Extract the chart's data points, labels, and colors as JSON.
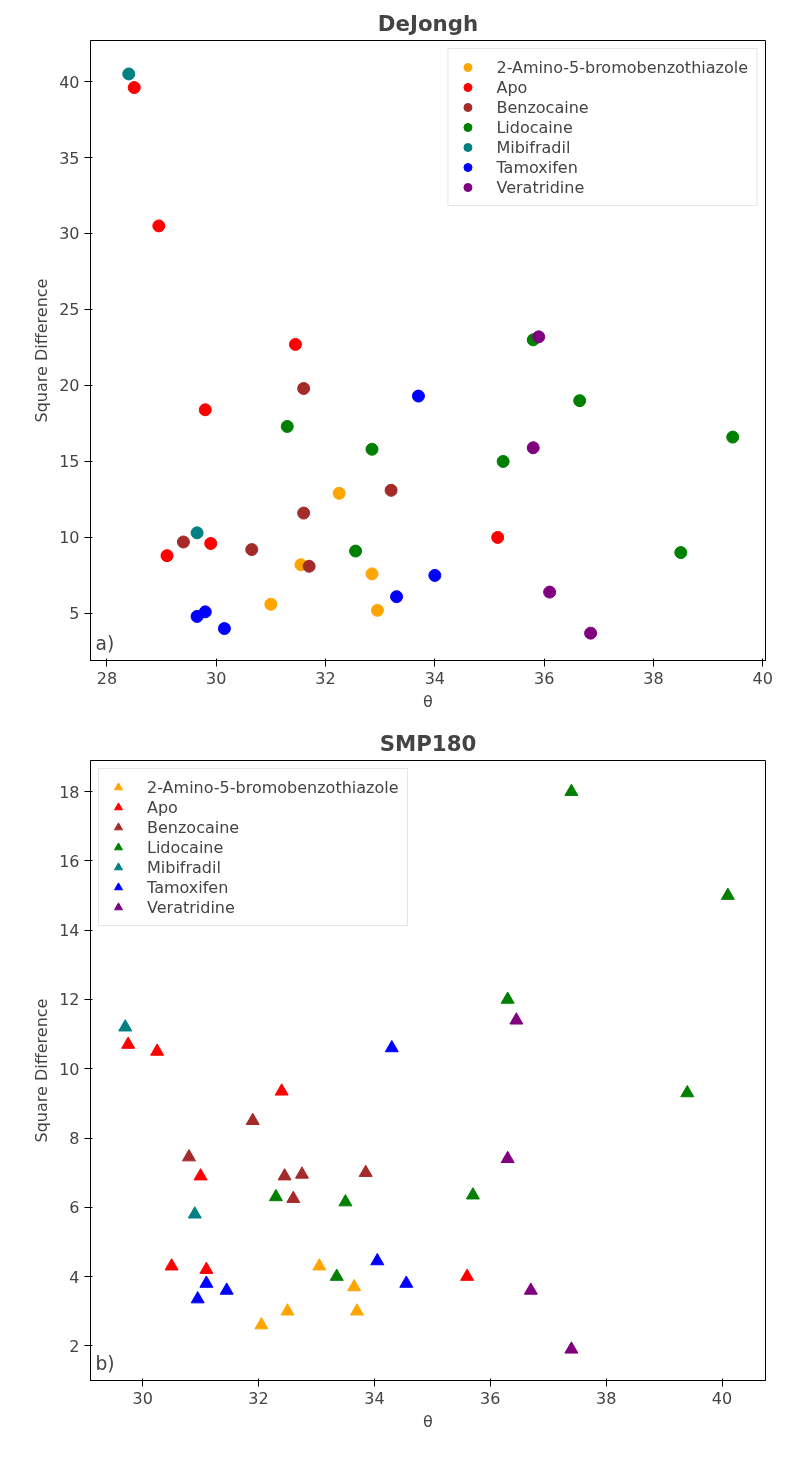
{
  "chart_data": [
    {
      "type": "scatter",
      "title": "DeJongh",
      "xlabel": "θ",
      "ylabel": "Square Difference",
      "annotations": [
        "a)"
      ],
      "marker": "circle",
      "legend": "top right",
      "grid": false,
      "xlim": [
        27.7,
        40.05
      ],
      "ylim": [
        1.9,
        42.7
      ],
      "xticks": [
        28,
        30,
        32,
        34,
        36,
        38,
        40
      ],
      "yticks": [
        5,
        10,
        15,
        20,
        25,
        30,
        35,
        40
      ],
      "series": [
        {
          "name": "2-Amino-5-bromobenzothiazole",
          "color": "#ffa500",
          "x": [
            31.0,
            31.55,
            32.25,
            32.85,
            32.95
          ],
          "values": [
            5.6,
            8.2,
            12.9,
            7.6,
            5.2
          ]
        },
        {
          "name": "Apo",
          "color": "#ff0000",
          "x": [
            28.5,
            28.95,
            29.1,
            29.8,
            29.9,
            31.45,
            35.15
          ],
          "values": [
            39.6,
            30.5,
            8.8,
            18.4,
            9.6,
            22.7,
            10.0
          ]
        },
        {
          "name": "Benzocaine",
          "color": "#a52a2a",
          "x": [
            29.4,
            30.65,
            31.6,
            31.6,
            31.7,
            33.2
          ],
          "values": [
            9.7,
            9.2,
            19.8,
            11.6,
            8.1,
            13.1
          ]
        },
        {
          "name": "Lidocaine",
          "color": "#008000",
          "x": [
            31.3,
            32.55,
            32.85,
            35.25,
            35.8,
            36.65,
            38.5,
            39.45
          ],
          "values": [
            17.3,
            9.1,
            15.8,
            15.0,
            23.0,
            19.0,
            9.0,
            16.6
          ]
        },
        {
          "name": "Mibifradil",
          "color": "#008080",
          "x": [
            28.4,
            29.65
          ],
          "values": [
            40.5,
            10.3
          ]
        },
        {
          "name": "Tamoxifen",
          "color": "#0000ff",
          "x": [
            29.65,
            29.8,
            30.15,
            33.3,
            33.7,
            34.0
          ],
          "values": [
            4.8,
            5.1,
            4.0,
            6.1,
            19.3,
            7.5
          ]
        },
        {
          "name": "Veratridine",
          "color": "#800080",
          "x": [
            35.8,
            35.9,
            36.1,
            36.85
          ],
          "values": [
            15.9,
            23.2,
            6.4,
            3.7
          ]
        }
      ]
    },
    {
      "type": "scatter",
      "title": "SMP180",
      "xlabel": "θ",
      "ylabel": "Square Difference",
      "annotations": [
        "b)"
      ],
      "marker": "triangle",
      "legend": "top left",
      "grid": false,
      "xlim": [
        29.1,
        40.75
      ],
      "ylim": [
        1.0,
        18.9
      ],
      "xticks": [
        30,
        32,
        34,
        36,
        38,
        40
      ],
      "yticks": [
        2,
        4,
        6,
        8,
        10,
        12,
        14,
        16,
        18
      ],
      "series": [
        {
          "name": "2-Amino-5-bromobenzothiazole",
          "color": "#ffa500",
          "x": [
            32.05,
            32.5,
            33.05,
            33.65,
            33.7
          ],
          "values": [
            2.6,
            3.0,
            4.3,
            3.7,
            3.0
          ]
        },
        {
          "name": "Apo",
          "color": "#ff0000",
          "x": [
            29.75,
            30.25,
            30.5,
            31.0,
            31.1,
            32.4,
            35.6
          ],
          "values": [
            10.7,
            10.5,
            4.3,
            6.9,
            4.2,
            9.35,
            4.0
          ]
        },
        {
          "name": "Benzocaine",
          "color": "#a52a2a",
          "x": [
            30.8,
            31.9,
            32.45,
            32.6,
            32.75,
            33.85
          ],
          "values": [
            7.45,
            8.5,
            6.9,
            6.25,
            6.95,
            7.0
          ]
        },
        {
          "name": "Lidocaine",
          "color": "#008000",
          "x": [
            32.3,
            33.35,
            33.5,
            35.7,
            36.3,
            37.4,
            39.4,
            40.1
          ],
          "values": [
            6.3,
            4.0,
            6.15,
            6.35,
            12.0,
            18.0,
            9.3,
            15.0
          ]
        },
        {
          "name": "Mibifradil",
          "color": "#008080",
          "x": [
            29.7,
            30.9
          ],
          "values": [
            11.2,
            5.8
          ]
        },
        {
          "name": "Tamoxifen",
          "color": "#0000ff",
          "x": [
            30.95,
            31.1,
            31.45,
            34.05,
            34.3,
            34.55
          ],
          "values": [
            3.35,
            3.8,
            3.6,
            4.45,
            10.6,
            3.8
          ]
        },
        {
          "name": "Veratridine",
          "color": "#800080",
          "x": [
            36.3,
            36.45,
            36.7,
            37.4
          ],
          "values": [
            7.4,
            11.4,
            3.6,
            1.9
          ]
        }
      ]
    }
  ]
}
